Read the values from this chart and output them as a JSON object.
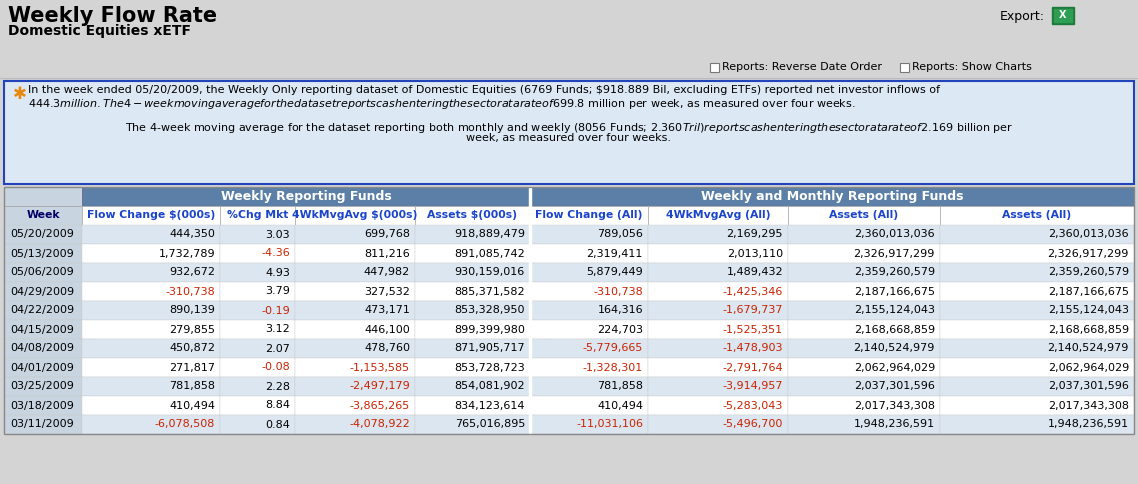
{
  "title": "Weekly Flow Rate",
  "subtitle": "Domestic Equities xETF",
  "bg_color": "#d4d4d4",
  "info_box_bg": "#dde8f5",
  "info_box_border": "#2244bb",
  "table_header_bg": "#5b7fa6",
  "table_header_text": "#ffffff",
  "table_subheader_bg": "#ffffff",
  "table_subheader_text": "#1a44cc",
  "week_col_bg": "#c8d4e0",
  "row_bg_a": "#dce6f0",
  "row_bg_b": "#ffffff",
  "negative_color": "#cc2200",
  "positive_color": "#000000",
  "divider_color": "#ffffff",
  "col_headers_group1": "Weekly Reporting Funds",
  "col_headers_group2": "Weekly and Monthly Reporting Funds",
  "col_headers": [
    "Week",
    "Flow Change $(000s)",
    "%Chg Mkt",
    "4WkMvgAvg $(000s)",
    "Assets $(000s)",
    "Flow Change (All)",
    "4WkMvgAvg (All)",
    "Assets (All)"
  ],
  "rows": [
    [
      "05/20/2009",
      "444,350",
      "3.03",
      "699,768",
      "918,889,479",
      "789,056",
      "2,169,295",
      "2,360,013,036"
    ],
    [
      "05/13/2009",
      "1,732,789",
      "-4.36",
      "811,216",
      "891,085,742",
      "2,319,411",
      "2,013,110",
      "2,326,917,299"
    ],
    [
      "05/06/2009",
      "932,672",
      "4.93",
      "447,982",
      "930,159,016",
      "5,879,449",
      "1,489,432",
      "2,359,260,579"
    ],
    [
      "04/29/2009",
      "-310,738",
      "3.79",
      "327,532",
      "885,371,582",
      "-310,738",
      "-1,425,346",
      "2,187,166,675"
    ],
    [
      "04/22/2009",
      "890,139",
      "-0.19",
      "473,171",
      "853,328,950",
      "164,316",
      "-1,679,737",
      "2,155,124,043"
    ],
    [
      "04/15/2009",
      "279,855",
      "3.12",
      "446,100",
      "899,399,980",
      "224,703",
      "-1,525,351",
      "2,168,668,859"
    ],
    [
      "04/08/2009",
      "450,872",
      "2.07",
      "478,760",
      "871,905,717",
      "-5,779,665",
      "-1,478,903",
      "2,140,524,979"
    ],
    [
      "04/01/2009",
      "271,817",
      "-0.08",
      "-1,153,585",
      "853,728,723",
      "-1,328,301",
      "-2,791,764",
      "2,062,964,029"
    ],
    [
      "03/25/2009",
      "781,858",
      "2.28",
      "-2,497,179",
      "854,081,902",
      "781,858",
      "-3,914,957",
      "2,037,301,596"
    ],
    [
      "03/18/2009",
      "410,494",
      "8.84",
      "-3,865,265",
      "834,123,614",
      "410,494",
      "-5,283,043",
      "2,017,343,308"
    ],
    [
      "03/11/2009",
      "-6,078,508",
      "0.84",
      "-4,078,922",
      "765,016,895",
      "-11,031,106",
      "-5,496,700",
      "1,948,236,591"
    ]
  ]
}
